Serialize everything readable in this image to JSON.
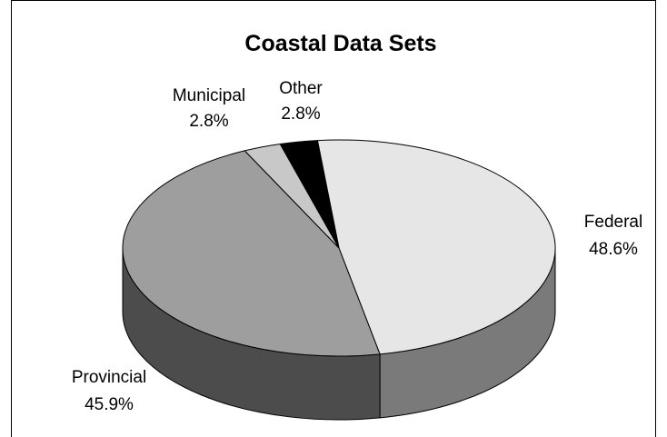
{
  "chart_data": {
    "type": "pie",
    "title": "Coastal Data Sets",
    "three_d": true,
    "legend": "none",
    "slices": [
      {
        "name": "Federal",
        "value": 48.6,
        "label": "48.6%",
        "color": "#e6e6e6",
        "side_color": "#7a7a7a"
      },
      {
        "name": "Provincial",
        "value": 45.9,
        "label": "45.9%",
        "color": "#9e9e9e",
        "side_color": "#4c4c4c"
      },
      {
        "name": "Municipal",
        "value": 2.8,
        "label": "2.8%",
        "color": "#c8c8c8",
        "side_color": "#6a6a6a"
      },
      {
        "name": "Other",
        "value": 2.8,
        "label": "2.8%",
        "color": "#000000",
        "side_color": "#000000"
      }
    ]
  }
}
